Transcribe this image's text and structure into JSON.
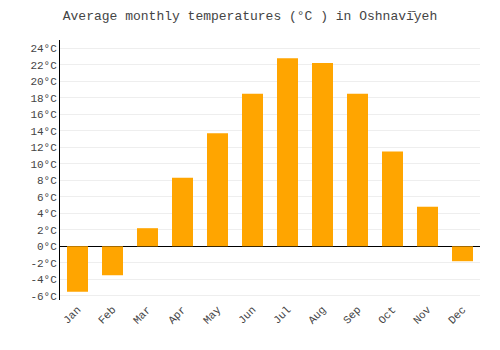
{
  "chart_data": {
    "type": "bar",
    "title": "Average monthly temperatures (°C ) in Oshnavī̄yeh",
    "categories": [
      "Jan",
      "Feb",
      "Mar",
      "Apr",
      "May",
      "Jun",
      "Jul",
      "Aug",
      "Sep",
      "Oct",
      "Nov",
      "Dec"
    ],
    "values": [
      -5.5,
      -3.5,
      2.2,
      8.3,
      13.7,
      18.5,
      22.8,
      22.2,
      18.5,
      11.5,
      4.8,
      -1.8
    ],
    "color": "#FFA500",
    "ylim": [
      -6.5,
      25
    ],
    "yticks": [
      {
        "value": -6,
        "label": "-6°C"
      },
      {
        "value": -4,
        "label": "-4°C"
      },
      {
        "value": -2,
        "label": "-2°C"
      },
      {
        "value": 0,
        "label": "0°C"
      },
      {
        "value": 2,
        "label": "2°C"
      },
      {
        "value": 4,
        "label": "4°C"
      },
      {
        "value": 6,
        "label": "6°C"
      },
      {
        "value": 8,
        "label": "8°C"
      },
      {
        "value": 10,
        "label": "10°C"
      },
      {
        "value": 12,
        "label": "12°C"
      },
      {
        "value": 14,
        "label": "14°C"
      },
      {
        "value": 16,
        "label": "16°C"
      },
      {
        "value": 18,
        "label": "18°C"
      },
      {
        "value": 20,
        "label": "20°C"
      },
      {
        "value": 22,
        "label": "22°C"
      },
      {
        "value": 24,
        "label": "24°C"
      }
    ],
    "grid": true
  }
}
